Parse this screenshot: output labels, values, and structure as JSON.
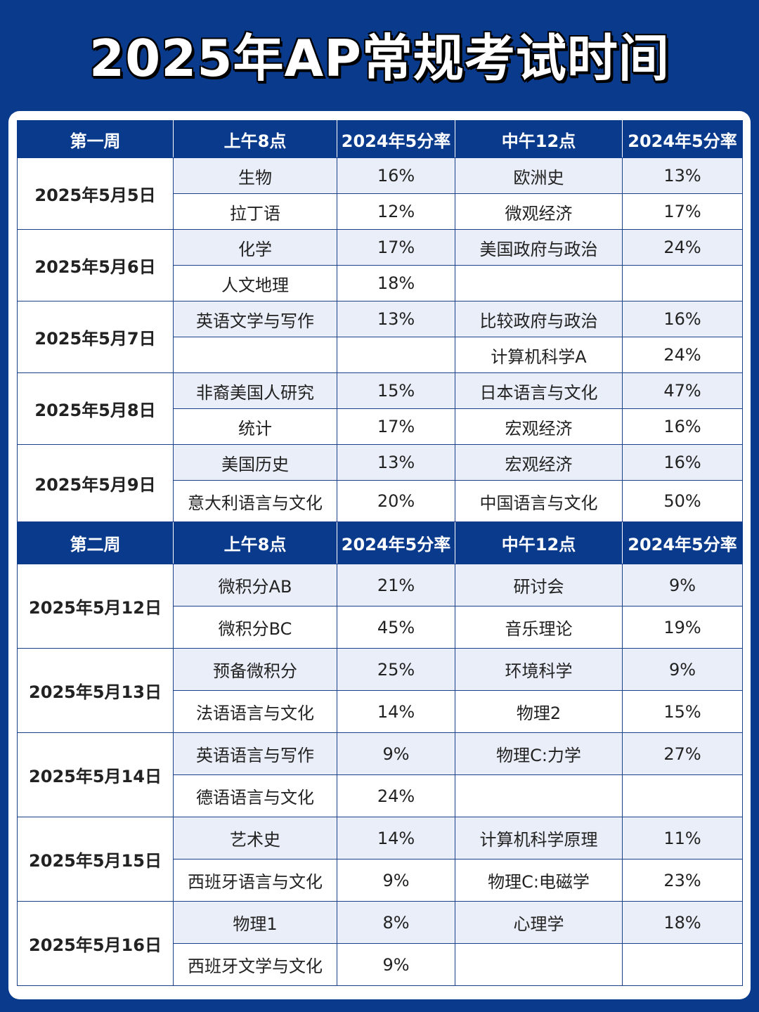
{
  "title": "2025年AP常规考试时间",
  "weeks": [
    {
      "header": [
        "第一周",
        "上午8点",
        "2024年5分率",
        "中午12点",
        "2024年5分率"
      ],
      "days": [
        {
          "date": "2025年5月5日",
          "rows": [
            [
              "生物",
              "16%",
              "欧洲史",
              "13%"
            ],
            [
              "拉丁语",
              "12%",
              "微观经济",
              "17%"
            ]
          ]
        },
        {
          "date": "2025年5月6日",
          "rows": [
            [
              "化学",
              "17%",
              "美国政府与政治",
              "24%"
            ],
            [
              "人文地理",
              "18%",
              "",
              ""
            ]
          ]
        },
        {
          "date": "2025年5月7日",
          "rows": [
            [
              "英语文学与写作",
              "13%",
              "比较政府与政治",
              "16%"
            ],
            [
              "",
              "",
              "计算机科学A",
              "24%"
            ]
          ]
        },
        {
          "date": "2025年5月8日",
          "rows": [
            [
              "非裔美国人研究",
              "15%",
              "日本语言与文化",
              "47%"
            ],
            [
              "统计",
              "17%",
              "宏观经济",
              "16%"
            ]
          ]
        },
        {
          "date": "2025年5月9日",
          "rows": [
            [
              "美国历史",
              "13%",
              "宏观经济",
              "16%"
            ],
            [
              "意大利语言与文化",
              "20%",
              "中国语言与文化",
              "50%"
            ]
          ]
        }
      ]
    },
    {
      "header": [
        "第二周",
        "上午8点",
        "2024年5分率",
        "中午12点",
        "2024年5分率"
      ],
      "days": [
        {
          "date": "2025年5月12日",
          "rows": [
            [
              "微积分AB",
              "21%",
              "研讨会",
              "9%"
            ],
            [
              "微积分BC",
              "45%",
              "音乐理论",
              "19%"
            ]
          ]
        },
        {
          "date": "2025年5月13日",
          "rows": [
            [
              "预备微积分",
              "25%",
              "环境科学",
              "9%"
            ],
            [
              "法语语言与文化",
              "14%",
              "物理2",
              "15%"
            ]
          ]
        },
        {
          "date": "2025年5月14日",
          "rows": [
            [
              "英语语言与写作",
              "9%",
              "物理C:力学",
              "27%"
            ],
            [
              "德语语言与文化",
              "24%",
              "",
              ""
            ]
          ]
        },
        {
          "date": "2025年5月15日",
          "rows": [
            [
              "艺术史",
              "14%",
              "计算机科学原理",
              "11%"
            ],
            [
              "西班牙语言与文化",
              "9%",
              "物理C:电磁学",
              "23%"
            ]
          ]
        },
        {
          "date": "2025年5月16日",
          "rows": [
            [
              "物理1",
              "8%",
              "心理学",
              "18%"
            ],
            [
              "西班牙文学与文化",
              "9%",
              "",
              ""
            ]
          ]
        }
      ]
    }
  ]
}
